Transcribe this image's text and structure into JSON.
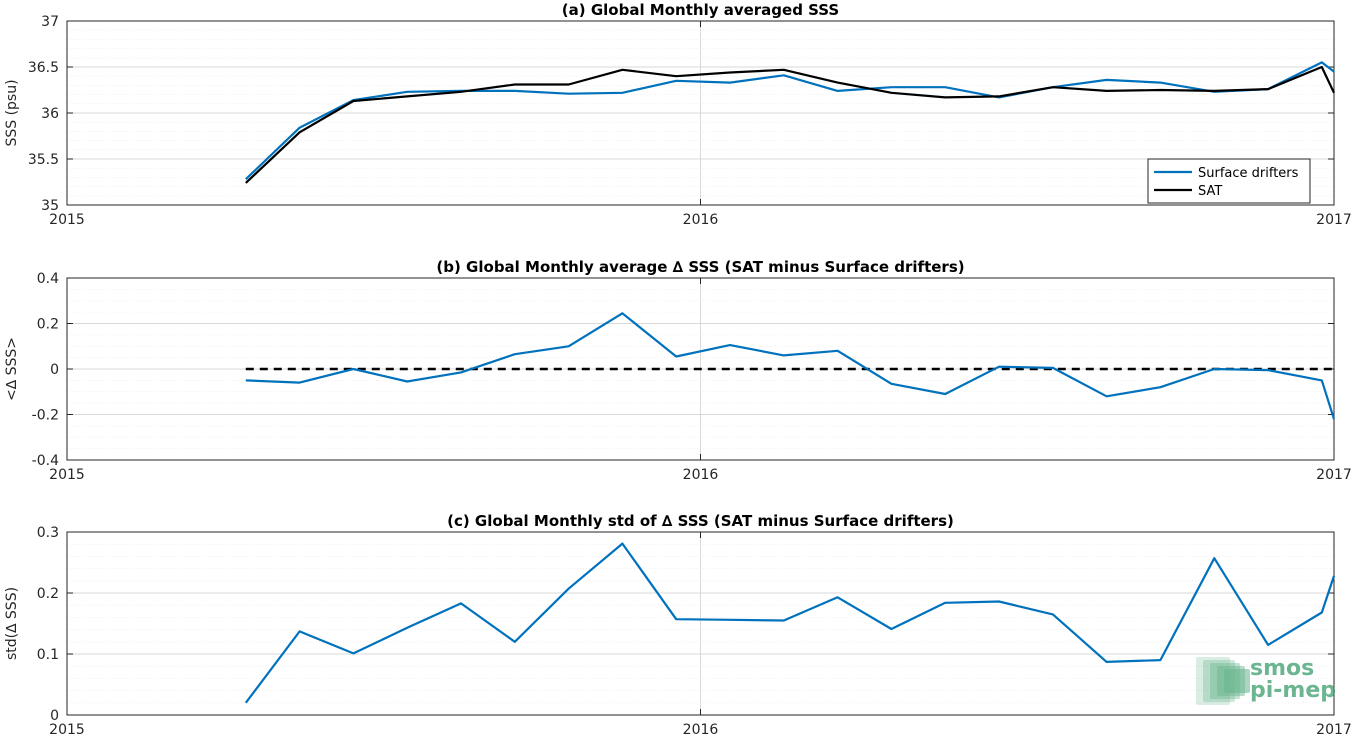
{
  "watermark": {
    "line1": "smos",
    "line2": "pi-mep",
    "color": "#3a9e6b"
  },
  "colors": {
    "drifters": "#0072bd",
    "sat": "#000000",
    "grid": "#d9d9d9",
    "minor_grid": "#ececec"
  },
  "chart_data": [
    {
      "type": "line",
      "title": "(a) Global Monthly averaged SSS",
      "xlabel": "",
      "ylabel": "SSS (psu)",
      "xlim": [
        2015.0,
        2017.0
      ],
      "ylim": [
        35,
        37
      ],
      "x_ticks": [
        2015.0,
        2016.0,
        2017.0
      ],
      "x_tick_labels": [
        "2015",
        "2016",
        "2017"
      ],
      "y_ticks": [
        35,
        35.5,
        36,
        36.5,
        37
      ],
      "y_tick_labels": [
        "35",
        "35.5",
        "36",
        "36.5",
        "37"
      ],
      "y_minor_step": 0.1,
      "grid": true,
      "legend": {
        "placement": "bottom-right",
        "entries": [
          "Surface drifters",
          "SAT"
        ]
      },
      "x": [
        2015.2822,
        2015.3671,
        2015.4521,
        2015.537,
        2015.6219,
        2015.7068,
        2015.7918,
        2015.8767,
        2015.9616,
        2016.0466,
        2016.1315,
        2016.2164,
        2016.3014,
        2016.3863,
        2016.4712,
        2016.5562,
        2016.6411,
        2016.726,
        2016.811,
        2016.8959,
        2016.9808,
        2017.0
      ],
      "series": [
        {
          "name": "Surface drifters",
          "color": "#0072bd",
          "values": [
            35.28,
            35.84,
            36.14,
            36.23,
            36.24,
            36.24,
            36.21,
            36.22,
            36.35,
            36.33,
            36.41,
            36.24,
            36.28,
            36.28,
            36.17,
            36.28,
            36.36,
            36.33,
            36.23,
            36.26,
            36.55,
            36.45
          ]
        },
        {
          "name": "SAT",
          "color": "#000000",
          "values": [
            35.24,
            35.79,
            36.13,
            36.18,
            36.23,
            36.31,
            36.31,
            36.47,
            36.4,
            36.44,
            36.47,
            36.33,
            36.22,
            36.17,
            36.18,
            36.28,
            36.24,
            36.25,
            36.24,
            36.26,
            36.5,
            36.22
          ]
        }
      ]
    },
    {
      "type": "line",
      "title": "(b) Global Monthly average ∆ SSS (SAT minus Surface drifters)",
      "xlabel": "",
      "ylabel": "<∆ SSS>",
      "xlim": [
        2015.0,
        2017.0
      ],
      "ylim": [
        -0.4,
        0.4
      ],
      "x_ticks": [
        2015.0,
        2016.0,
        2017.0
      ],
      "x_tick_labels": [
        "2015",
        "2016",
        "2017"
      ],
      "y_ticks": [
        -0.4,
        -0.2,
        0,
        0.2,
        0.4
      ],
      "y_tick_labels": [
        "-0.4",
        "-0.2",
        "0",
        "0.2",
        "0.4"
      ],
      "y_minor_step": 0.05,
      "grid": true,
      "reference_line": {
        "y": 0,
        "x_start": 2015.2822,
        "x_end": 2017.0,
        "style": "dashed"
      },
      "x": [
        2015.2822,
        2015.3671,
        2015.4521,
        2015.537,
        2015.6219,
        2015.7068,
        2015.7918,
        2015.8767,
        2015.9616,
        2016.0466,
        2016.1315,
        2016.2164,
        2016.3014,
        2016.3863,
        2016.4712,
        2016.5562,
        2016.6411,
        2016.726,
        2016.811,
        2016.8959,
        2016.9808,
        2017.0
      ],
      "series": [
        {
          "color": "#0072bd",
          "values": [
            -0.05,
            -0.06,
            0.0,
            -0.055,
            -0.015,
            0.065,
            0.1,
            0.245,
            0.055,
            0.105,
            0.06,
            0.08,
            -0.065,
            -0.11,
            0.01,
            0.005,
            -0.12,
            -0.08,
            0.0,
            -0.005,
            -0.05,
            -0.22
          ]
        }
      ]
    },
    {
      "type": "line",
      "title": "(c) Global Monthly std of ∆ SSS (SAT minus Surface drifters)",
      "xlabel": "",
      "ylabel": "std(∆ SSS)",
      "xlim": [
        2015.0,
        2017.0
      ],
      "ylim": [
        0,
        0.3
      ],
      "x_ticks": [
        2015.0,
        2016.0,
        2017.0
      ],
      "x_tick_labels": [
        "2015",
        "2016",
        "2017"
      ],
      "y_ticks": [
        0,
        0.1,
        0.2,
        0.3
      ],
      "y_tick_labels": [
        "0",
        "0.1",
        "0.2",
        "0.3"
      ],
      "y_minor_step": 0.02,
      "grid": true,
      "x": [
        2015.2822,
        2015.3671,
        2015.4521,
        2015.537,
        2015.6219,
        2015.7068,
        2015.7918,
        2015.8767,
        2015.9616,
        2016.0466,
        2016.1315,
        2016.2164,
        2016.3014,
        2016.3863,
        2016.4712,
        2016.5562,
        2016.6411,
        2016.726,
        2016.811,
        2016.8959,
        2016.9808,
        2017.0
      ],
      "series": [
        {
          "color": "#0072bd",
          "values": [
            0.02,
            0.137,
            0.101,
            0.143,
            0.183,
            0.12,
            0.207,
            0.281,
            0.157,
            0.156,
            0.155,
            0.193,
            0.141,
            0.184,
            0.186,
            0.165,
            0.087,
            0.09,
            0.257,
            0.115,
            0.168,
            0.228
          ]
        }
      ]
    }
  ]
}
